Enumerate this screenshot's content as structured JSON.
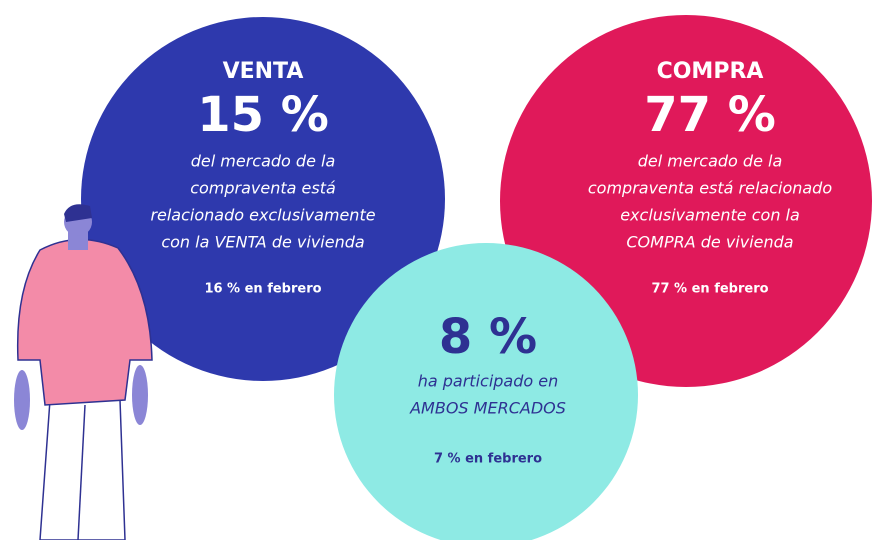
{
  "circles": [
    {
      "title": "VENTA",
      "figure": "15 %",
      "lines": [
        "del mercado de la",
        "compraventa está",
        "relacionado exclusivamente",
        "con la VENTA de vivienda"
      ],
      "note": "16 % en febrero"
    },
    {
      "title": "COMPRA",
      "figure": "77 %",
      "lines": [
        "del mercado de la",
        "compraventa está relacionado",
        "exclusivamente con la",
        "COMPRA de vivienda"
      ],
      "note": "77 % en febrero"
    },
    {
      "figure": "8 %",
      "lines": [
        "ha participado en",
        "AMBOS MERCADOS"
      ],
      "note": "7 % en febrero"
    }
  ]
}
